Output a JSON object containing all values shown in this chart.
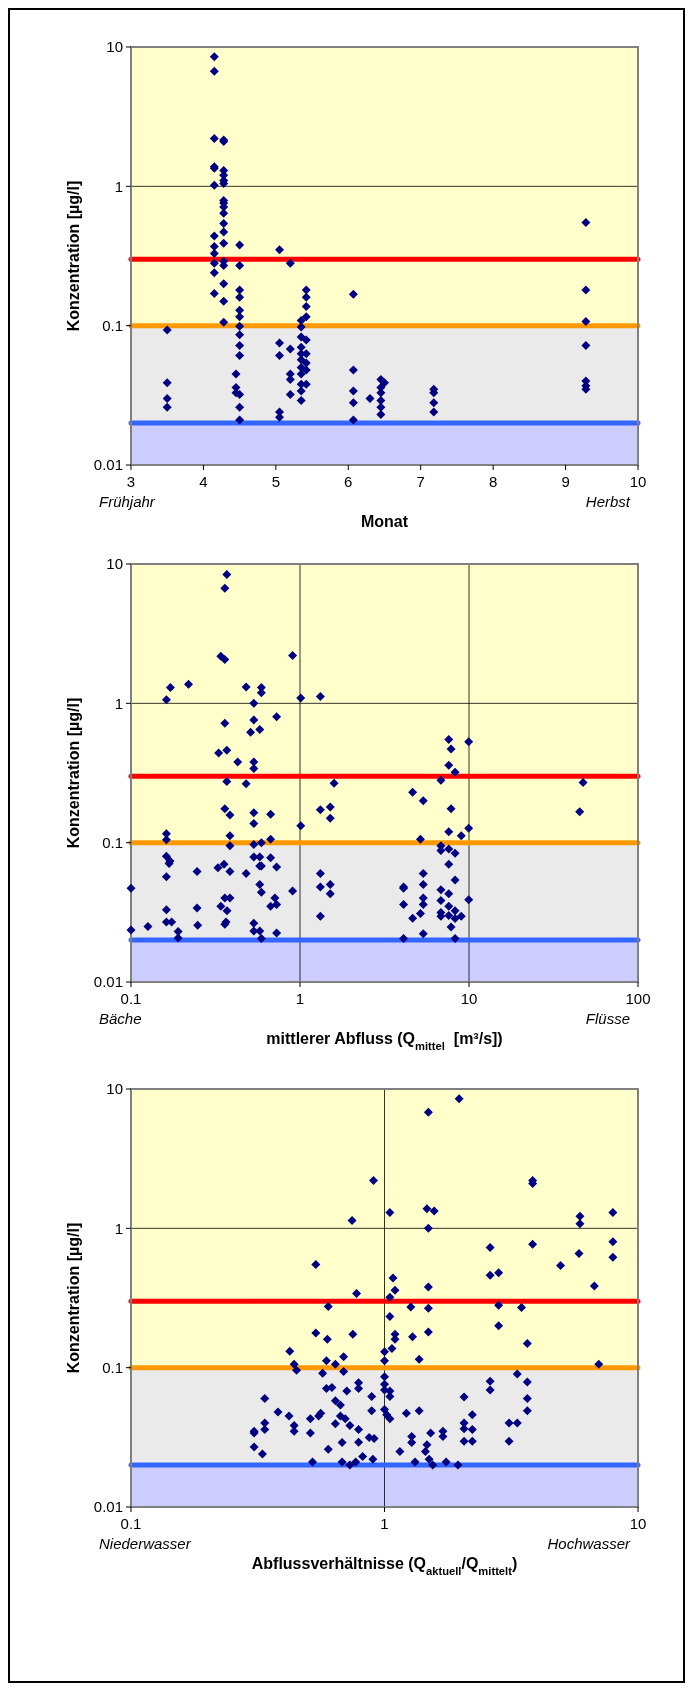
{
  "chart_data": [
    {
      "type": "scatter",
      "xlabel": "Monat",
      "ylabel": "Konzentration [µg/l]",
      "annotations": [
        "Frühjahr",
        "Herbst"
      ],
      "xlim": [
        3,
        10
      ],
      "xticks": [
        3,
        4,
        5,
        6,
        7,
        8,
        9,
        10
      ],
      "ylim": [
        0.01,
        10
      ],
      "yticks": [
        0.01,
        0.1,
        1,
        10
      ],
      "log": "y",
      "marker": "diamond",
      "bands": [
        {
          "axis": "y",
          "from": 0.1,
          "to": 10,
          "color": "#ffffcc"
        },
        {
          "axis": "y",
          "from": 0.02,
          "to": 0.1,
          "color": "#eaeaea"
        },
        {
          "axis": "y",
          "from": 0.01,
          "to": 0.02,
          "color": "#ccccff"
        }
      ],
      "ref_lines": [
        {
          "axis": "y",
          "value": 1,
          "color": "#000000",
          "line_style": "solid"
        },
        {
          "axis": "y",
          "value": 0.3,
          "color": "#ff0000"
        },
        {
          "axis": "y",
          "value": 0.1,
          "color": "#ff9900"
        },
        {
          "axis": "y",
          "value": 0.02,
          "color": "#3366ff"
        }
      ],
      "series": [
        {
          "color": "#000080",
          "x": [
            3.5,
            3.5,
            3.5,
            3.5,
            4.15,
            4.15,
            4.15,
            4.15,
            4.15,
            4.15,
            4.15,
            4.15,
            4.15,
            4.15,
            4.15,
            4.15,
            4.28,
            4.28,
            4.28,
            4.28,
            4.28,
            4.28,
            4.28,
            4.28,
            4.28,
            4.28,
            4.28,
            4.28,
            4.28,
            4.28,
            4.28,
            4.28,
            4.28,
            4.28,
            4.5,
            4.5,
            4.5,
            4.5,
            4.5,
            4.5,
            4.5,
            4.5,
            4.5,
            4.5,
            4.5,
            4.5,
            4.5,
            4.45,
            4.45,
            4.45,
            5.05,
            5.05,
            5.05,
            5.05,
            5.05,
            5.2,
            5.2,
            5.2,
            5.2,
            5.2,
            5.35,
            5.35,
            5.35,
            5.35,
            5.35,
            5.35,
            5.35,
            5.35,
            5.35,
            5.35,
            5.35,
            5.42,
            5.42,
            5.42,
            5.42,
            5.42,
            5.42,
            5.42,
            5.42,
            5.42,
            6.07,
            6.07,
            6.07,
            6.07,
            6.07,
            6.3,
            6.45,
            6.45,
            6.45,
            6.45,
            6.45,
            6.45,
            6.5,
            7.18,
            7.18,
            7.18,
            7.18,
            9.28,
            9.28,
            9.28,
            9.28,
            9.28,
            9.28,
            9.28
          ],
          "values": [
            0.093,
            0.039,
            0.03,
            0.026,
            8.5,
            6.7,
            2.2,
            1.38,
            1.35,
            1.02,
            0.44,
            0.37,
            0.33,
            0.28,
            0.24,
            0.17,
            2.15,
            2.1,
            1.3,
            1.2,
            1.1,
            1.05,
            0.79,
            0.76,
            0.71,
            0.64,
            0.54,
            0.47,
            0.39,
            0.29,
            0.27,
            0.2,
            0.15,
            0.106,
            0.38,
            0.27,
            0.18,
            0.16,
            0.129,
            0.116,
            0.099,
            0.086,
            0.072,
            0.061,
            0.032,
            0.026,
            0.021,
            0.045,
            0.036,
            0.033,
            0.35,
            0.075,
            0.061,
            0.024,
            0.022,
            0.28,
            0.068,
            0.045,
            0.041,
            0.032,
            0.109,
            0.098,
            0.083,
            0.07,
            0.063,
            0.057,
            0.05,
            0.045,
            0.038,
            0.034,
            0.029,
            0.18,
            0.16,
            0.137,
            0.116,
            0.079,
            0.063,
            0.054,
            0.048,
            0.038,
            0.168,
            0.048,
            0.034,
            0.028,
            0.021,
            0.03,
            0.041,
            0.036,
            0.033,
            0.029,
            0.026,
            0.023,
            0.039,
            0.035,
            0.033,
            0.028,
            0.024,
            0.55,
            0.18,
            0.107,
            0.072,
            0.04,
            0.037,
            0.035
          ]
        }
      ]
    },
    {
      "type": "scatter",
      "xlabel": "mittlerer Abfluss (Q$_{mittel}$  [m³/s])",
      "ylabel": "Konzentration [µg/l]",
      "annotations": [
        "Bäche",
        "Flüsse"
      ],
      "xlim": [
        0.1,
        100
      ],
      "xticks": [
        0.1,
        1,
        10,
        100
      ],
      "ylim": [
        0.01,
        10
      ],
      "yticks": [
        0.01,
        0.1,
        1,
        10
      ],
      "log": "xy",
      "grid": true,
      "marker": "diamond",
      "bands": [
        {
          "axis": "y",
          "from": 0.1,
          "to": 10,
          "color": "#ffffcc"
        },
        {
          "axis": "y",
          "from": 0.02,
          "to": 0.1,
          "color": "#eaeaea"
        },
        {
          "axis": "y",
          "from": 0.01,
          "to": 0.02,
          "color": "#ccccff"
        }
      ],
      "ref_lines": [
        {
          "axis": "y",
          "value": 0.3,
          "color": "#ff0000"
        },
        {
          "axis": "y",
          "value": 0.1,
          "color": "#ff9900"
        },
        {
          "axis": "y",
          "value": 0.02,
          "color": "#3366ff"
        }
      ],
      "series": [
        {
          "color": "#000080",
          "x": [
            0.1,
            0.1,
            0.126,
            0.162,
            0.171,
            0.219,
            0.162,
            0.162,
            0.162,
            0.17,
            0.168,
            0.162,
            0.162,
            0.162,
            0.174,
            0.19,
            0.19,
            0.246,
            0.246,
            0.248,
            0.34,
            0.359,
            0.369,
            0.359,
            0.359,
            0.369,
            0.33,
            0.369,
            0.359,
            0.385,
            0.385,
            0.385,
            0.355,
            0.327,
            0.385,
            0.359,
            0.385,
            0.37,
            0.34,
            0.365,
            0.359,
            0.428,
            0.48,
            0.48,
            0.48,
            0.533,
            0.533,
            0.51,
            0.578,
            0.533,
            0.591,
            0.591,
            0.533,
            0.533,
            0.533,
            0.591,
            0.533,
            0.578,
            0.533,
            0.578,
            0.591,
            0.578,
            0.591,
            0.533,
            0.533,
            0.578,
            0.591,
            0.67,
            0.67,
            0.67,
            0.67,
            0.727,
            0.727,
            0.71,
            0.727,
            0.727,
            0.904,
            0.904,
            1.01,
            1.01,
            1.32,
            1.32,
            1.32,
            1.32,
            1.32,
            1.51,
            1.51,
            1.51,
            1.51,
            1.59,
            4.1,
            4.1,
            4.1,
            4.1,
            4.64,
            4.64,
            5.16,
            5.16,
            5.36,
            5.36,
            5.36,
            5.36,
            5.36,
            5.36,
            6.82,
            6.82,
            6.82,
            6.82,
            6.82,
            6.82,
            6.82,
            7.59,
            7.59,
            7.59,
            7.59,
            7.59,
            7.59,
            7.59,
            7.59,
            7.83,
            7.83,
            7.83,
            8.27,
            8.27,
            8.27,
            8.27,
            8.27,
            8.27,
            9.0,
            9.0,
            9.96,
            9.96,
            9.96,
            47.3,
            45.2
          ],
          "values": [
            0.047,
            0.0236,
            0.025,
            1.06,
            1.3,
            1.37,
            0.116,
            0.105,
            0.08,
            0.074,
            0.071,
            0.057,
            0.033,
            0.027,
            0.027,
            0.023,
            0.0207,
            0.062,
            0.034,
            0.0255,
            2.18,
            2.06,
            8.4,
            6.7,
            0.72,
            0.46,
            0.44,
            0.275,
            0.175,
            0.158,
            0.112,
            0.095,
            0.07,
            0.066,
            0.062,
            0.04,
            0.04,
            0.0325,
            0.035,
            0.027,
            0.026,
            0.38,
            1.31,
            0.265,
            0.06,
            1.0,
            0.76,
            0.62,
            0.65,
            0.38,
            1.3,
            1.19,
            0.34,
            0.164,
            0.137,
            0.1,
            0.097,
            0.079,
            0.079,
            0.068,
            0.068,
            0.05,
            0.044,
            0.0264,
            0.0232,
            0.0232,
            0.0205,
            0.16,
            0.106,
            0.078,
            0.035,
            0.8,
            0.067,
            0.04,
            0.036,
            0.0225,
            2.2,
            0.045,
            1.09,
            0.132,
            1.12,
            0.172,
            0.06,
            0.048,
            0.0296,
            0.18,
            0.15,
            0.05,
            0.043,
            0.267,
            0.048,
            0.047,
            0.036,
            0.0205,
            0.23,
            0.0287,
            0.106,
            0.031,
            0.2,
            0.06,
            0.05,
            0.04,
            0.036,
            0.0222,
            0.28,
            0.095,
            0.088,
            0.046,
            0.0385,
            0.0316,
            0.0296,
            0.55,
            0.36,
            0.12,
            0.09,
            0.07,
            0.043,
            0.035,
            0.03,
            0.47,
            0.175,
            0.0248,
            0.32,
            0.084,
            0.054,
            0.0325,
            0.0286,
            0.0205,
            0.112,
            0.0296,
            0.53,
            0.127,
            0.039,
            0.27,
            0.167
          ]
        }
      ]
    },
    {
      "type": "scatter",
      "xlabel": "Abflussverhältnisse (Q$_{aktuell}$/Q$_{mittelt}$)",
      "ylabel": "Konzentration [µg/l]",
      "annotations": [
        "Niederwasser",
        "Hochwasser"
      ],
      "xlim": [
        0.1,
        10
      ],
      "xticks": [
        0.1,
        1,
        10
      ],
      "ylim": [
        0.01,
        10
      ],
      "yticks": [
        0.01,
        0.1,
        1,
        10
      ],
      "log": "xy",
      "grid": true,
      "marker": "diamond",
      "bands": [
        {
          "axis": "y",
          "from": 0.1,
          "to": 10,
          "color": "#ffffcc"
        },
        {
          "axis": "y",
          "from": 0.02,
          "to": 0.1,
          "color": "#eaeaea"
        },
        {
          "axis": "y",
          "from": 0.01,
          "to": 0.02,
          "color": "#ccccff"
        }
      ],
      "ref_lines": [
        {
          "axis": "y",
          "value": 0.3,
          "color": "#ff0000"
        },
        {
          "axis": "y",
          "value": 0.1,
          "color": "#ff9900"
        },
        {
          "axis": "y",
          "value": 0.02,
          "color": "#3366ff"
        }
      ],
      "series": [
        {
          "color": "#000080",
          "x": [
            1.97,
            1.49,
            0.905,
            3.84,
            3.84,
            0.745,
            1.05,
            1.47,
            1.57,
            1.49,
            5.9,
            5.9,
            7.96,
            2.61,
            3.84,
            7.96,
            7.96,
            5.85,
            4.95,
            6.73,
            2.61,
            2.82,
            0.536,
            1.08,
            1.1,
            1.05,
            0.776,
            0.6,
            1.27,
            1.49,
            1.49,
            1.49,
            2.82,
            2.82,
            3.47,
            3.66,
            7.0,
            1.05,
            1.1,
            1.1,
            1.07,
            1.0,
            1.0,
            0.536,
            0.595,
            0.75,
            1.29,
            1.37,
            0.423,
            0.44,
            0.45,
            0.59,
            0.64,
            0.57,
            0.69,
            0.69,
            1.0,
            1.0,
            1.0,
            1.05,
            1.05,
            3.34,
            3.66,
            3.66,
            3.66,
            2.61,
            2.61,
            2.06,
            2.22,
            2.06,
            2.06,
            2.22,
            2.06,
            2.22,
            3.1,
            3.34,
            3.1,
            0.79,
            0.79,
            0.59,
            0.62,
            0.89,
            0.89,
            0.64,
            0.67,
            0.71,
            0.337,
            0.38,
            0.42,
            0.44,
            0.44,
            0.51,
            0.51,
            0.55,
            0.56,
            0.306,
            0.337,
            0.337,
            0.306,
            0.64,
            0.67,
            0.7,
            0.73,
            0.79,
            0.79,
            0.87,
            0.91,
            1.0,
            1.02,
            1.05,
            1.22,
            1.37,
            1.52,
            1.7,
            1.7,
            1.28,
            1.28,
            1.47,
            0.68,
            0.6,
            0.306,
            0.52,
            0.68,
            0.73,
            0.77,
            0.9,
            1.32,
            1.55,
            1.75,
            1.95,
            1.5,
            1.45,
            1.15,
            0.82,
            0.33
          ],
          "values": [
            8.5,
            6.8,
            2.2,
            2.2,
            2.1,
            1.14,
            1.3,
            1.38,
            1.33,
            1.0,
            1.22,
            1.08,
            1.3,
            0.73,
            0.77,
            0.8,
            0.62,
            0.66,
            0.54,
            0.385,
            0.46,
            0.48,
            0.55,
            0.44,
            0.36,
            0.32,
            0.34,
            0.275,
            0.273,
            0.38,
            0.267,
            0.18,
            0.28,
            0.2,
            0.27,
            0.149,
            0.106,
            0.233,
            0.174,
            0.16,
            0.137,
            0.13,
            0.112,
            0.177,
            0.16,
            0.174,
            0.167,
            0.115,
            0.131,
            0.106,
            0.096,
            0.112,
            0.106,
            0.091,
            0.12,
            0.094,
            0.086,
            0.076,
            0.069,
            0.068,
            0.062,
            0.09,
            0.079,
            0.06,
            0.049,
            0.08,
            0.069,
            0.0615,
            0.046,
            0.04,
            0.0364,
            0.036,
            0.0296,
            0.0296,
            0.04,
            0.04,
            0.0296,
            0.078,
            0.071,
            0.071,
            0.072,
            0.062,
            0.049,
            0.058,
            0.054,
            0.068,
            0.06,
            0.048,
            0.045,
            0.0385,
            0.035,
            0.043,
            0.034,
            0.045,
            0.047,
            0.035,
            0.04,
            0.036,
            0.034,
            0.0395,
            0.045,
            0.043,
            0.0385,
            0.036,
            0.0292,
            0.0315,
            0.031,
            0.05,
            0.046,
            0.043,
            0.047,
            0.049,
            0.034,
            0.035,
            0.032,
            0.032,
            0.029,
            0.028,
            0.029,
            0.026,
            0.027,
            0.021,
            0.021,
            0.02,
            0.021,
            0.022,
            0.021,
            0.02,
            0.021,
            0.02,
            0.022,
            0.025,
            0.025,
            0.023,
            0.024
          ]
        }
      ]
    }
  ]
}
